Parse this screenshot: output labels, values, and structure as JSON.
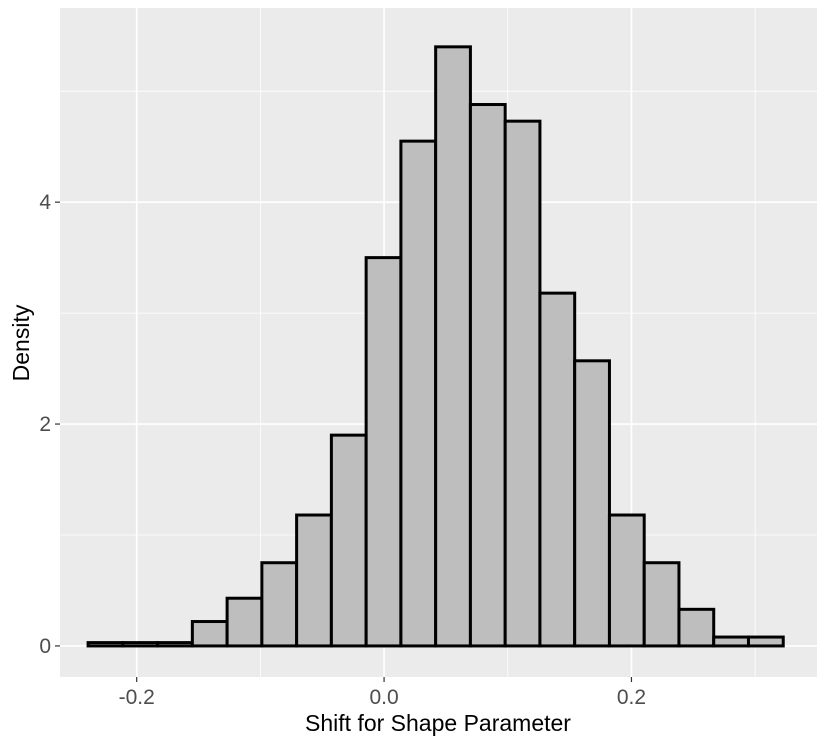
{
  "chart_data": {
    "type": "bar",
    "subtype": "histogram",
    "title": "",
    "xlabel": "Shift for Shape Parameter",
    "ylabel": "Density",
    "xlim": [
      -0.262,
      0.35
    ],
    "ylim": [
      -0.28,
      5.75
    ],
    "x_ticks": [
      -0.2,
      0.0,
      0.2
    ],
    "x_tick_labels": [
      "-0.2",
      "0.0",
      "0.2"
    ],
    "y_ticks": [
      0,
      2,
      4
    ],
    "y_tick_labels": [
      "0",
      "2",
      "4"
    ],
    "grid": true,
    "bin_width": 0.0281,
    "bins": [
      {
        "x0": -0.2393,
        "x1": -0.2112,
        "density": 0.03
      },
      {
        "x0": -0.2112,
        "x1": -0.1831,
        "density": 0.03
      },
      {
        "x0": -0.1831,
        "x1": -0.155,
        "density": 0.03
      },
      {
        "x0": -0.155,
        "x1": -0.1269,
        "density": 0.22
      },
      {
        "x0": -0.1269,
        "x1": -0.0988,
        "density": 0.43
      },
      {
        "x0": -0.0988,
        "x1": -0.0707,
        "density": 0.75
      },
      {
        "x0": -0.0707,
        "x1": -0.0426,
        "density": 1.18
      },
      {
        "x0": -0.0426,
        "x1": -0.0145,
        "density": 1.9
      },
      {
        "x0": -0.0145,
        "x1": 0.0136,
        "density": 3.5
      },
      {
        "x0": 0.0136,
        "x1": 0.0417,
        "density": 4.55
      },
      {
        "x0": 0.0417,
        "x1": 0.0698,
        "density": 5.4
      },
      {
        "x0": 0.0698,
        "x1": 0.0979,
        "density": 4.88
      },
      {
        "x0": 0.0979,
        "x1": 0.126,
        "density": 4.73
      },
      {
        "x0": 0.126,
        "x1": 0.1541,
        "density": 3.18
      },
      {
        "x0": 0.1541,
        "x1": 0.1822,
        "density": 2.57
      },
      {
        "x0": 0.1822,
        "x1": 0.2103,
        "density": 1.18
      },
      {
        "x0": 0.2103,
        "x1": 0.2384,
        "density": 0.75
      },
      {
        "x0": 0.2384,
        "x1": 0.2665,
        "density": 0.33
      },
      {
        "x0": 0.2665,
        "x1": 0.2946,
        "density": 0.08
      },
      {
        "x0": 0.2946,
        "x1": 0.3227,
        "density": 0.08
      }
    ],
    "colors": {
      "panel_background": "#ebebeb",
      "grid": "#ffffff",
      "bar_fill": "#bebebe",
      "bar_outline": "#000000",
      "tick_text": "#4d4d4d"
    }
  }
}
